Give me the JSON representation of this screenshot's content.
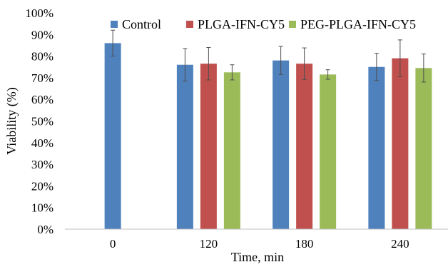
{
  "chart_data": {
    "type": "bar",
    "title": "",
    "xlabel": "Time, min",
    "ylabel": "Viability (%)",
    "categories": [
      "0",
      "120",
      "180",
      "240"
    ],
    "ylim": [
      0,
      100
    ],
    "yticks": [
      "0%",
      "10%",
      "20%",
      "30%",
      "40%",
      "50%",
      "60%",
      "70%",
      "80%",
      "90%",
      "100%"
    ],
    "grid": false,
    "legend_position": "top",
    "series": [
      {
        "name": "Control",
        "color": "#4F81BD",
        "values": [
          86,
          76,
          78,
          75
        ],
        "errors": [
          6,
          7.5,
          6.5,
          6.3
        ]
      },
      {
        "name": "PLGA-IFN-CY5",
        "color": "#C0504D",
        "values": [
          null,
          76.5,
          76.5,
          79
        ],
        "errors": [
          null,
          7.5,
          7.3,
          8.5
        ]
      },
      {
        "name": "PEG-PLGA-IFN-CY5",
        "color": "#9BBB59",
        "values": [
          null,
          72.5,
          71.5,
          74.5
        ],
        "errors": [
          null,
          3.5,
          2.2,
          6.5
        ]
      }
    ]
  }
}
